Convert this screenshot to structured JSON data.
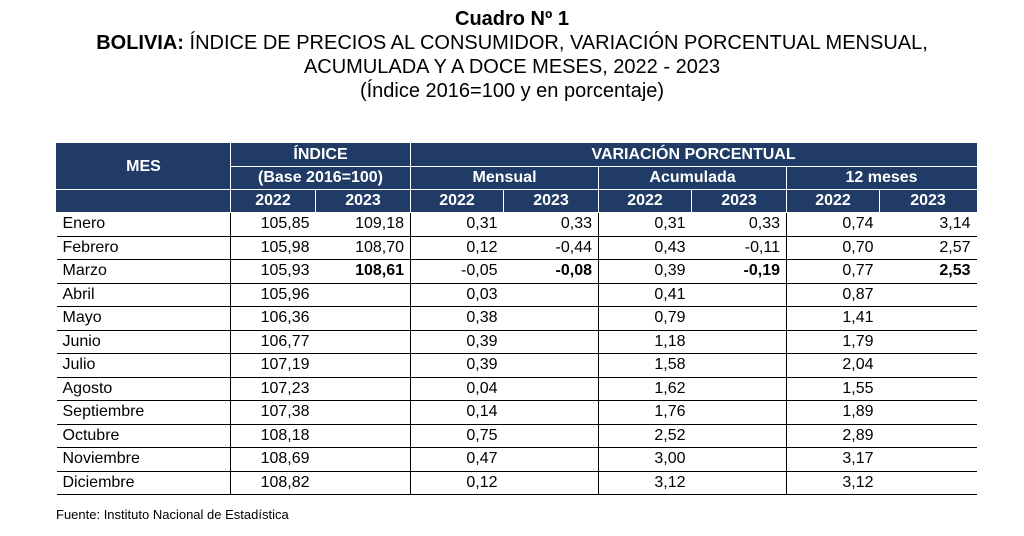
{
  "title": {
    "line1": "Cuadro Nº 1",
    "line2_bold": "BOLIVIA:",
    "line2_rest": " ÍNDICE DE PRECIOS AL CONSUMIDOR, VARIACIÓN PORCENTUAL MENSUAL,",
    "line3": "ACUMULADA Y A DOCE MESES, 2022 - 2023",
    "line4": "(Índice 2016=100 y en porcentaje)"
  },
  "header": {
    "mes": "MES",
    "indice": "ÍNDICE",
    "indice_base": "(Base 2016=100)",
    "variacion": "VARIACIÓN PORCENTUAL",
    "mensual": "Mensual",
    "acumulada": "Acumulada",
    "doce": "12 meses",
    "y2022": "2022",
    "y2023": "2023"
  },
  "rows": [
    {
      "mes": "Enero",
      "i22": "105,85",
      "i23": "109,18",
      "m22": "0,31",
      "m23": "0,33",
      "a22": "0,31",
      "a23": "0,33",
      "d22": "0,74",
      "d23": "3,14"
    },
    {
      "mes": "Febrero",
      "i22": "105,98",
      "i23": "108,70",
      "m22": "0,12",
      "m23": "-0,44",
      "a22": "0,43",
      "a23": "-0,11",
      "d22": "0,70",
      "d23": "2,57"
    },
    {
      "mes": "Marzo",
      "i22": "105,93",
      "i23": "108,61",
      "m22": "-0,05",
      "m23": "-0,08",
      "a22": "0,39",
      "a23": "-0,19",
      "d22": "0,77",
      "d23": "2,53"
    },
    {
      "mes": "Abril",
      "i22": "105,96",
      "i23": "",
      "m22": "0,03",
      "m23": "",
      "a22": "0,41",
      "a23": "",
      "d22": "0,87",
      "d23": ""
    },
    {
      "mes": "Mayo",
      "i22": "106,36",
      "i23": "",
      "m22": "0,38",
      "m23": "",
      "a22": "0,79",
      "a23": "",
      "d22": "1,41",
      "d23": ""
    },
    {
      "mes": "Junio",
      "i22": "106,77",
      "i23": "",
      "m22": "0,39",
      "m23": "",
      "a22": "1,18",
      "a23": "",
      "d22": "1,79",
      "d23": ""
    },
    {
      "mes": "Julio",
      "i22": "107,19",
      "i23": "",
      "m22": "0,39",
      "m23": "",
      "a22": "1,58",
      "a23": "",
      "d22": "2,04",
      "d23": ""
    },
    {
      "mes": "Agosto",
      "i22": "107,23",
      "i23": "",
      "m22": "0,04",
      "m23": "",
      "a22": "1,62",
      "a23": "",
      "d22": "1,55",
      "d23": ""
    },
    {
      "mes": "Septiembre",
      "i22": "107,38",
      "i23": "",
      "m22": "0,14",
      "m23": "",
      "a22": "1,76",
      "a23": "",
      "d22": "1,89",
      "d23": ""
    },
    {
      "mes": "Octubre",
      "i22": "108,18",
      "i23": "",
      "m22": "0,75",
      "m23": "",
      "a22": "2,52",
      "a23": "",
      "d22": "2,89",
      "d23": ""
    },
    {
      "mes": "Noviembre",
      "i22": "108,69",
      "i23": "",
      "m22": "0,47",
      "m23": "",
      "a22": "3,00",
      "a23": "",
      "d22": "3,17",
      "d23": ""
    },
    {
      "mes": "Diciembre",
      "i22": "108,82",
      "i23": "",
      "m22": "0,12",
      "m23": "",
      "a22": "3,12",
      "a23": "",
      "d22": "3,12",
      "d23": ""
    }
  ],
  "source": "Fuente: Instituto Nacional de Estadística",
  "colors": {
    "header_bg": "#1f3b66",
    "header_text": "#ffffff"
  }
}
